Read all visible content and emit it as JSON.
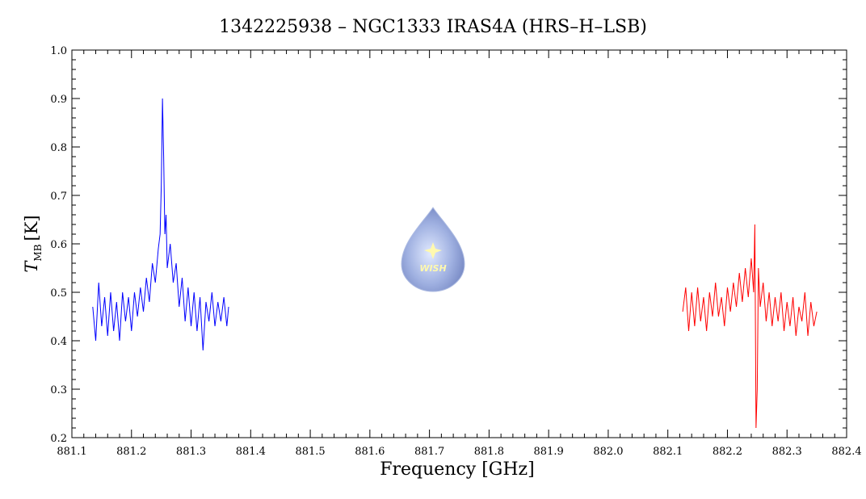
{
  "chart_data": {
    "type": "line",
    "title": "1342225938 – NGC1333 IRAS4A (HRS–H–LSB)",
    "xlabel": "Frequency [GHz]",
    "ylabel": {
      "symbol": "T",
      "subscript": "MB",
      "unit": "[K]"
    },
    "logo_text": "WISH",
    "xlim": [
      881.1,
      882.4
    ],
    "xticks": [
      881.1,
      881.2,
      881.3,
      881.4,
      881.5,
      881.6,
      881.7,
      881.8,
      881.9,
      {
        "value": 882,
        "label": "882.0"
      },
      882.1,
      882.2,
      882.3,
      882.4
    ],
    "ylim": [
      0.2,
      1
    ],
    "yticks": [
      0.2,
      0.3,
      0.4,
      0.5,
      0.6,
      0.7,
      0.8,
      0.9,
      {
        "value": 1,
        "label": "1.0"
      }
    ],
    "series": [
      {
        "color": "#0000ff",
        "x": [
          881.135,
          881.14,
          881.145,
          881.15,
          881.155,
          881.16,
          881.165,
          881.17,
          881.175,
          881.18,
          881.185,
          881.19,
          881.195,
          881.2,
          881.205,
          881.21,
          881.215,
          881.22,
          881.225,
          881.23,
          881.235,
          881.24,
          881.245,
          881.248,
          881.25,
          881.252,
          881.254,
          881.256,
          881.258,
          881.26,
          881.265,
          881.27,
          881.275,
          881.28,
          881.285,
          881.29,
          881.295,
          881.3,
          881.305,
          881.31,
          881.315,
          881.32,
          881.325,
          881.33,
          881.335,
          881.34,
          881.345,
          881.35,
          881.355,
          881.36,
          881.363
        ],
        "values": [
          0.47,
          0.4,
          0.52,
          0.43,
          0.49,
          0.41,
          0.5,
          0.42,
          0.48,
          0.4,
          0.5,
          0.44,
          0.49,
          0.42,
          0.5,
          0.45,
          0.51,
          0.46,
          0.53,
          0.48,
          0.56,
          0.52,
          0.59,
          0.62,
          0.72,
          0.9,
          0.78,
          0.62,
          0.66,
          0.55,
          0.6,
          0.52,
          0.56,
          0.47,
          0.53,
          0.44,
          0.51,
          0.43,
          0.5,
          0.42,
          0.49,
          0.38,
          0.48,
          0.44,
          0.5,
          0.43,
          0.48,
          0.44,
          0.49,
          0.43,
          0.47
        ]
      },
      {
        "color": "#ff0000",
        "x": [
          882.125,
          882.13,
          882.135,
          882.14,
          882.145,
          882.15,
          882.155,
          882.16,
          882.165,
          882.17,
          882.175,
          882.18,
          882.185,
          882.19,
          882.195,
          882.2,
          882.205,
          882.21,
          882.215,
          882.22,
          882.225,
          882.23,
          882.235,
          882.24,
          882.244,
          882.246,
          882.248,
          882.25,
          882.252,
          882.255,
          882.26,
          882.265,
          882.27,
          882.275,
          882.28,
          882.285,
          882.29,
          882.295,
          882.3,
          882.305,
          882.31,
          882.315,
          882.32,
          882.325,
          882.33,
          882.335,
          882.34,
          882.345,
          882.35
        ],
        "values": [
          0.46,
          0.51,
          0.42,
          0.5,
          0.43,
          0.51,
          0.44,
          0.49,
          0.42,
          0.5,
          0.45,
          0.52,
          0.45,
          0.49,
          0.43,
          0.51,
          0.46,
          0.52,
          0.47,
          0.54,
          0.48,
          0.55,
          0.49,
          0.57,
          0.5,
          0.64,
          0.22,
          0.3,
          0.55,
          0.47,
          0.52,
          0.44,
          0.5,
          0.43,
          0.49,
          0.44,
          0.5,
          0.42,
          0.48,
          0.43,
          0.49,
          0.41,
          0.47,
          0.44,
          0.5,
          0.41,
          0.48,
          0.43,
          0.46
        ]
      }
    ]
  }
}
